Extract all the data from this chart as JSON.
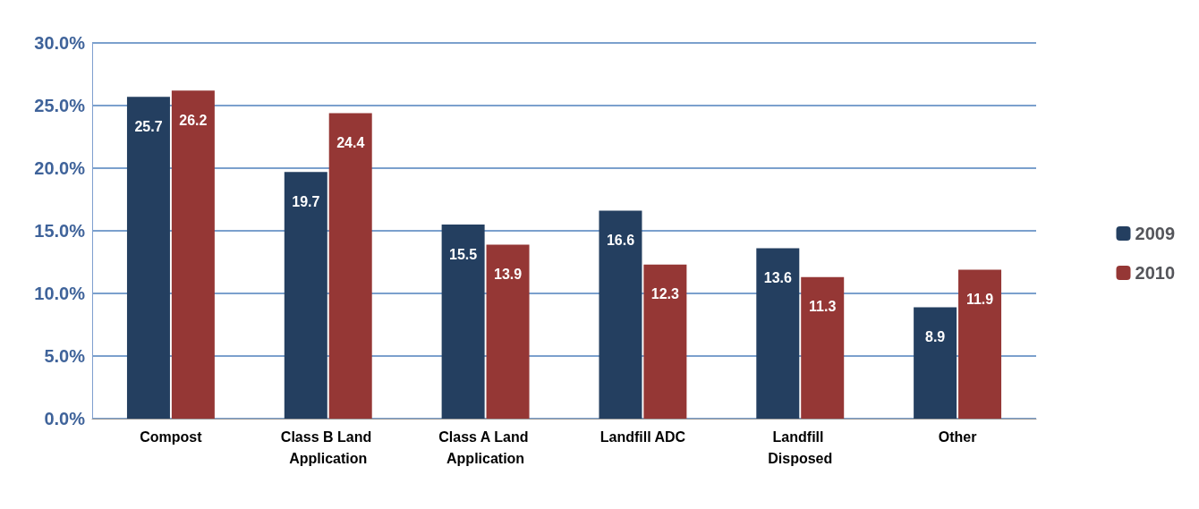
{
  "chart_data": {
    "type": "bar",
    "categories": [
      "Compost",
      "Class B Land Application",
      "Class A Land Application",
      "Landfill ADC",
      "Landfill Disposed",
      "Other"
    ],
    "series": [
      {
        "name": "2009",
        "color": "#243f60",
        "values": [
          25.7,
          19.7,
          15.5,
          16.6,
          13.6,
          8.9
        ]
      },
      {
        "name": "2010",
        "color": "#953735",
        "values": [
          26.2,
          24.4,
          13.9,
          12.3,
          11.3,
          11.9
        ]
      }
    ],
    "ylim": [
      0,
      30
    ],
    "yticks": [
      {
        "value": 0,
        "label": "0.0%"
      },
      {
        "value": 5,
        "label": "5.0%"
      },
      {
        "value": 10,
        "label": "10.0%"
      },
      {
        "value": 15,
        "label": "15.0%"
      },
      {
        "value": 20,
        "label": "20.0%"
      },
      {
        "value": 25,
        "label": "25.0%"
      },
      {
        "value": 30,
        "label": "30.0%"
      }
    ],
    "grid": "y",
    "legend": "right",
    "data_labels": true
  }
}
